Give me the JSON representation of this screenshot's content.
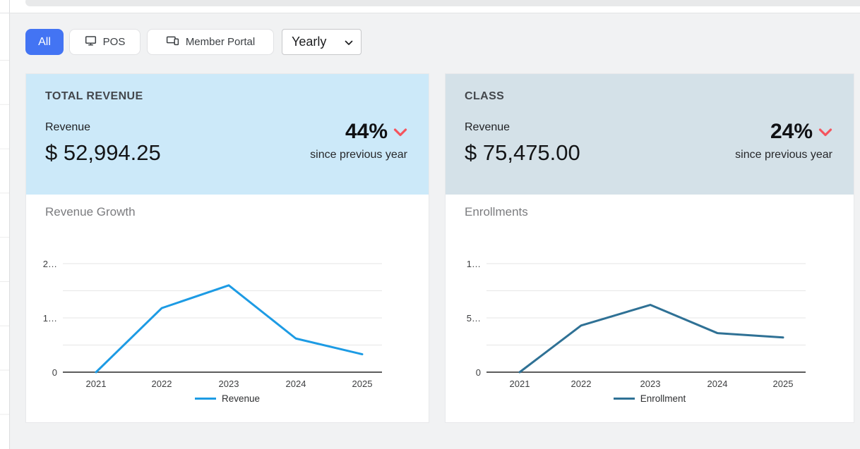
{
  "colors": {
    "page_bg": "#f1f2f3",
    "accent_blue": "#4374f3",
    "card1_header_bg": "#cce9f9",
    "card2_header_bg": "#d4e1e8",
    "negative_red": "#f4555e",
    "revenue_line": "#1d9be4",
    "enrollment_line": "#2f7195"
  },
  "toolbar": {
    "filters": [
      {
        "label": "All",
        "active": true,
        "icon": null
      },
      {
        "label": "POS",
        "active": false,
        "icon": "monitor-icon"
      },
      {
        "label": "Member Portal",
        "active": false,
        "icon": "devices-icon"
      }
    ],
    "period_select": {
      "value": "Yearly",
      "icon": "chevron-down-icon"
    }
  },
  "cards": [
    {
      "header_title": "TOTAL REVENUE",
      "metric_label": "Revenue",
      "metric_value": "$ 52,994.25",
      "change_percent": "44%",
      "change_direction": "down",
      "change_icon": "chevron-down-icon",
      "change_caption": "since previous year"
    },
    {
      "header_title": "CLASS",
      "metric_label": "Revenue",
      "metric_value": "$ 75,475.00",
      "change_percent": "24%",
      "change_direction": "down",
      "change_icon": "chevron-down-icon",
      "change_caption": "since previous year"
    }
  ],
  "chart_data": [
    {
      "type": "line",
      "title": "Revenue Growth",
      "x": [
        "2021",
        "2022",
        "2023",
        "2024",
        "2025"
      ],
      "series": [
        {
          "name": "Revenue",
          "values": [
            0,
            1180,
            1600,
            620,
            330
          ],
          "color": "#1d9be4"
        }
      ],
      "ylim": [
        0,
        2200
      ],
      "y_ticks": [
        {
          "value": 0,
          "label": "0"
        },
        {
          "value": 500,
          "label": ""
        },
        {
          "value": 1000,
          "label": "1…"
        },
        {
          "value": 1500,
          "label": ""
        },
        {
          "value": 2000,
          "label": "2…"
        }
      ],
      "grid": true,
      "legend_position": "bottom"
    },
    {
      "type": "line",
      "title": "Enrollments",
      "x": [
        "2021",
        "2022",
        "2023",
        "2024",
        "2025"
      ],
      "series": [
        {
          "name": "Enrollment",
          "values": [
            0,
            43,
            62,
            36,
            32
          ],
          "color": "#2f7195"
        }
      ],
      "ylim": [
        0,
        110
      ],
      "y_ticks": [
        {
          "value": 0,
          "label": "0"
        },
        {
          "value": 25,
          "label": ""
        },
        {
          "value": 50,
          "label": "5…"
        },
        {
          "value": 75,
          "label": ""
        },
        {
          "value": 100,
          "label": "1…"
        }
      ],
      "grid": true,
      "legend_position": "bottom"
    }
  ]
}
